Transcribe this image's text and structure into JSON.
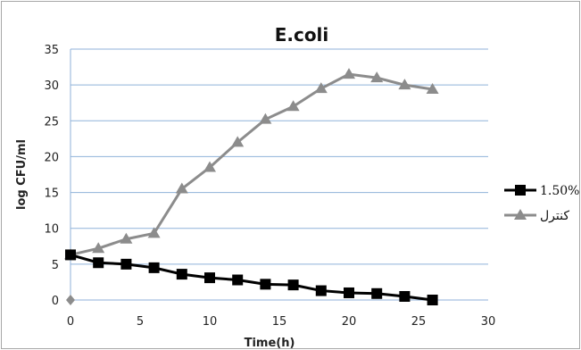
{
  "chart_data": {
    "type": "line",
    "title": "E.coli",
    "xlabel": "Time(h)",
    "ylabel": "log  CFU/ml",
    "xlim": [
      0,
      30
    ],
    "ylim": [
      0,
      35
    ],
    "xticks": [
      0,
      5,
      10,
      15,
      20,
      25,
      30
    ],
    "yticks": [
      0,
      5,
      10,
      15,
      20,
      25,
      30,
      35
    ],
    "grid": "horizontal",
    "legend_position": "right",
    "series": [
      {
        "name": "1.50%",
        "color": "#000000",
        "marker": "square",
        "x": [
          0,
          2,
          4,
          6,
          8,
          10,
          12,
          14,
          16,
          18,
          20,
          22,
          24,
          26
        ],
        "y": [
          6.3,
          5.2,
          5.0,
          4.5,
          3.6,
          3.1,
          2.8,
          2.2,
          2.1,
          1.3,
          1.0,
          0.9,
          0.5,
          0.0
        ]
      },
      {
        "name": "کنترل",
        "color": "#8c8c8c",
        "marker": "triangle",
        "x": [
          0,
          2,
          4,
          6,
          8,
          10,
          12,
          14,
          16,
          18,
          20,
          22,
          24,
          26
        ],
        "y": [
          6.3,
          7.2,
          8.5,
          9.3,
          15.5,
          18.5,
          22.0,
          25.2,
          27.0,
          29.5,
          31.5,
          31.0,
          30.0,
          29.4
        ]
      }
    ],
    "extra_points": [
      {
        "x": 0,
        "y": 0,
        "marker": "diamond",
        "color": "#8c8c8c"
      }
    ]
  }
}
